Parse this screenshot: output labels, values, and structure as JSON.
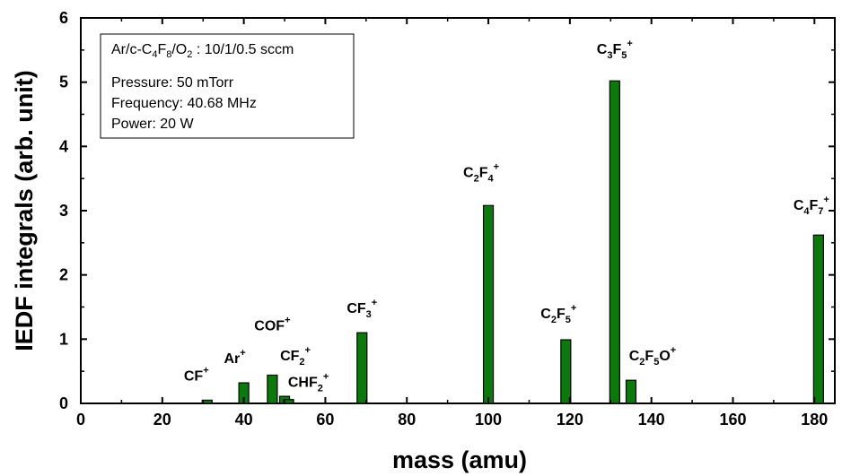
{
  "chart_data": {
    "type": "bar",
    "xlabel": "mass (amu)",
    "ylabel": "IEDF integrals (arb. unit)",
    "xlim": [
      0,
      185
    ],
    "ylim": [
      0,
      6
    ],
    "xticks": [
      0,
      20,
      40,
      60,
      80,
      100,
      120,
      140,
      160,
      180
    ],
    "yticks": [
      0,
      1,
      2,
      3,
      4,
      5,
      6
    ],
    "bar_color": "#0a7a0a",
    "grid": false,
    "points": [
      {
        "x": 31,
        "y": 0.05,
        "label": "CF",
        "sub": "",
        "sup": "+",
        "suffix": "",
        "suffix_sup": ""
      },
      {
        "x": 40,
        "y": 0.32,
        "label": "Ar",
        "sub": "",
        "sup": "+",
        "suffix": "",
        "suffix_sup": ""
      },
      {
        "x": 47,
        "y": 0.44,
        "label": "COF",
        "sub": "",
        "sup": "+",
        "suffix": "",
        "suffix_sup": ""
      },
      {
        "x": 50,
        "y": 0.11,
        "label": "CF",
        "sub": "2",
        "sup": "+",
        "suffix": "",
        "suffix_sup": ""
      },
      {
        "x": 51,
        "y": 0.06,
        "label": "CHF",
        "sub": "2",
        "sup": "+",
        "suffix": "",
        "suffix_sup": ""
      },
      {
        "x": 69,
        "y": 1.1,
        "label": "CF",
        "sub": "3",
        "sup": "+",
        "suffix": "",
        "suffix_sup": ""
      },
      {
        "x": 100,
        "y": 3.08,
        "label": "C",
        "sub": "2",
        "mid": "F",
        "sub2": "4",
        "sup": "+"
      },
      {
        "x": 119,
        "y": 0.99,
        "label": "C",
        "sub": "2",
        "mid": "F",
        "sub2": "5",
        "sup": "+"
      },
      {
        "x": 131,
        "y": 5.02,
        "label": "C",
        "sub": "3",
        "mid": "F",
        "sub2": "5",
        "sup": "+"
      },
      {
        "x": 135,
        "y": 0.36,
        "label": "C",
        "sub": "2",
        "mid": "F",
        "sub2": "5",
        "tail": "O",
        "sup": "+"
      },
      {
        "x": 181,
        "y": 2.62,
        "label": "C",
        "sub": "4",
        "mid": "F",
        "sub2": "7",
        "sup": "+"
      }
    ],
    "legend_box": {
      "line1_parts": [
        "Ar/c-C",
        "4",
        "F",
        "8",
        "/O",
        "2",
        " : 10/1/0.5 sccm"
      ],
      "line2": "Pressure: 50 mTorr",
      "line3": "Frequency: 40.68 MHz",
      "line4": "Power: 20 W"
    }
  }
}
